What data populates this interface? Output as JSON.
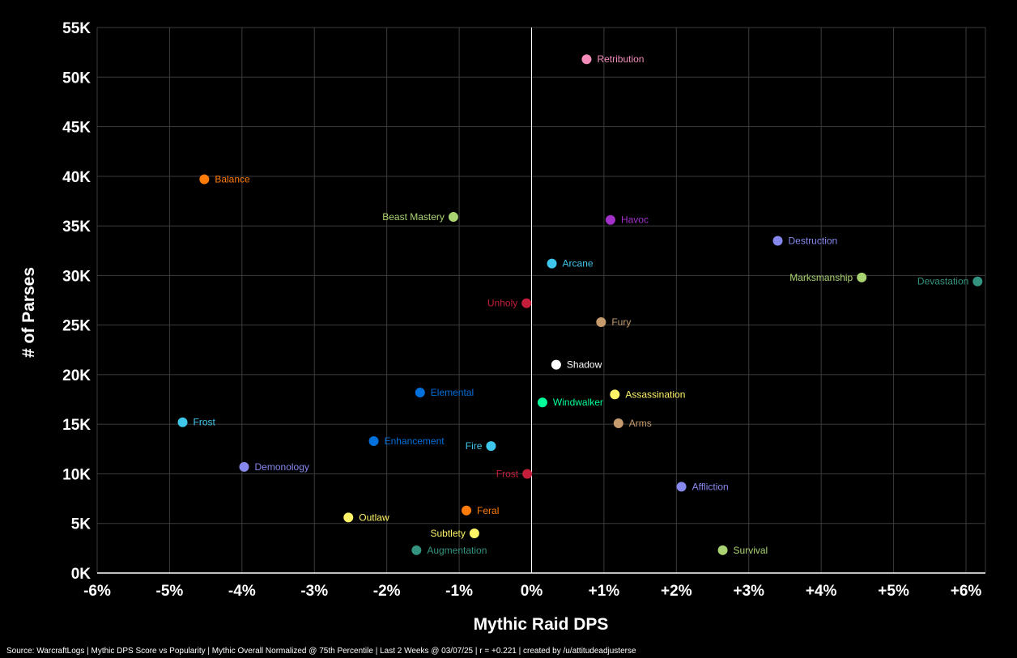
{
  "chart_data": {
    "type": "scatter",
    "xlabel": "Mythic Raid DPS",
    "ylabel": "# of Parses",
    "xlim": [
      -6,
      6.25
    ],
    "ylim": [
      0,
      55000
    ],
    "x_ticks": [
      -6,
      -5,
      -4,
      -3,
      -2,
      -1,
      0,
      1,
      2,
      3,
      4,
      5,
      6
    ],
    "x_tick_labels": [
      "-6%",
      "-5%",
      "-4%",
      "-3%",
      "-2%",
      "-1%",
      "0%",
      "+1%",
      "+2%",
      "+3%",
      "+4%",
      "+5%",
      "+6%"
    ],
    "y_ticks": [
      0,
      5000,
      10000,
      15000,
      20000,
      25000,
      30000,
      35000,
      40000,
      45000,
      50000,
      55000
    ],
    "y_tick_labels": [
      "0K",
      "5K",
      "10K",
      "15K",
      "20K",
      "25K",
      "30K",
      "35K",
      "40K",
      "45K",
      "50K",
      "55K"
    ],
    "grid": true,
    "points": [
      {
        "label": "Retribution",
        "x": 0.76,
        "y": 51800,
        "color": "#f48cba",
        "label_side": "right"
      },
      {
        "label": "Balance",
        "x": -4.52,
        "y": 39700,
        "color": "#ff7c0a",
        "label_side": "right"
      },
      {
        "label": "Beast Mastery",
        "x": -1.08,
        "y": 35900,
        "color": "#aad372",
        "label_side": "left"
      },
      {
        "label": "Havoc",
        "x": 1.09,
        "y": 35600,
        "color": "#a330c9",
        "label_side": "right"
      },
      {
        "label": "Destruction",
        "x": 3.4,
        "y": 33500,
        "color": "#8788ee",
        "label_side": "right"
      },
      {
        "label": "Arcane",
        "x": 0.28,
        "y": 31200,
        "color": "#3fc7eb",
        "label_side": "right"
      },
      {
        "label": "Marksmanship",
        "x": 4.56,
        "y": 29800,
        "color": "#aad372",
        "label_side": "left"
      },
      {
        "label": "Devastation",
        "x": 6.16,
        "y": 29400,
        "color": "#33937f",
        "label_side": "left"
      },
      {
        "label": "Unholy",
        "x": -0.07,
        "y": 27200,
        "color": "#c41e3a",
        "label_side": "left"
      },
      {
        "label": "Fury",
        "x": 0.96,
        "y": 25300,
        "color": "#c69b6d",
        "label_side": "right"
      },
      {
        "label": "Shadow",
        "x": 0.34,
        "y": 21000,
        "color": "#ffffff",
        "label_side": "right"
      },
      {
        "label": "Elemental",
        "x": -1.54,
        "y": 18200,
        "color": "#0070dd",
        "label_side": "right"
      },
      {
        "label": "Assassination",
        "x": 1.15,
        "y": 18000,
        "color": "#fff468",
        "label_side": "right"
      },
      {
        "label": "Windwalker",
        "x": 0.15,
        "y": 17200,
        "color": "#00ff98",
        "label_side": "right"
      },
      {
        "label": "Frost",
        "x": -4.82,
        "y": 15200,
        "color": "#3fc7eb",
        "label_side": "right"
      },
      {
        "label": "Arms",
        "x": 1.2,
        "y": 15100,
        "color": "#c69b6d",
        "label_side": "right"
      },
      {
        "label": "Enhancement",
        "x": -2.18,
        "y": 13300,
        "color": "#0070dd",
        "label_side": "right"
      },
      {
        "label": "Fire",
        "x": -0.56,
        "y": 12800,
        "color": "#3fc7eb",
        "label_side": "left"
      },
      {
        "label": "Demonology",
        "x": -3.97,
        "y": 10700,
        "color": "#8788ee",
        "label_side": "right"
      },
      {
        "label": "Frost",
        "x": -0.06,
        "y": 10000,
        "color": "#c41e3a",
        "label_side": "left"
      },
      {
        "label": "Affliction",
        "x": 2.07,
        "y": 8700,
        "color": "#8788ee",
        "label_side": "right"
      },
      {
        "label": "Feral",
        "x": -0.9,
        "y": 6300,
        "color": "#ff7c0a",
        "label_side": "right"
      },
      {
        "label": "Outlaw",
        "x": -2.53,
        "y": 5600,
        "color": "#fff468",
        "label_side": "right"
      },
      {
        "label": "Subtlety",
        "x": -0.79,
        "y": 4000,
        "color": "#fff468",
        "label_side": "left"
      },
      {
        "label": "Augmentation",
        "x": -1.59,
        "y": 2300,
        "color": "#33937f",
        "label_side": "right"
      },
      {
        "label": "Survival",
        "x": 2.64,
        "y": 2300,
        "color": "#aad372",
        "label_side": "right"
      }
    ]
  },
  "footer": {
    "source_text": "Source: WarcraftLogs | Mythic DPS Score vs Popularity | Mythic Overall Normalized @ 75th Percentile | Last 2 Weeks @ 03/07/25 | r = +0.221 | created by /u/attitudeadjusterse"
  }
}
